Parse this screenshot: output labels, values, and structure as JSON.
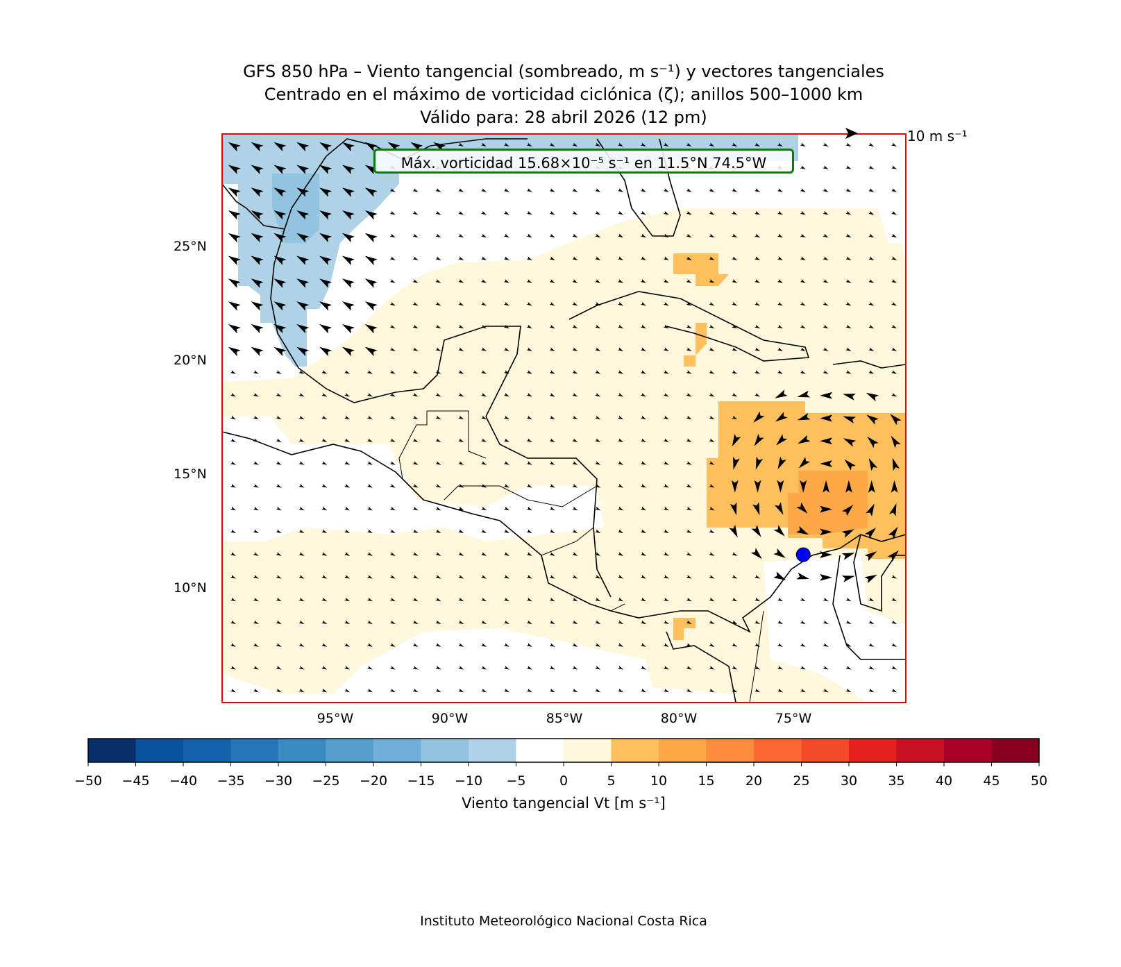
{
  "title": {
    "line1": "GFS 850 hPa – Viento tangencial (sombreado, m s⁻¹) y vectores tangenciales",
    "line2": "Centrado en el máximo de vorticidad ciclónica (ζ); anillos 500–1000 km",
    "line3": "Válido para: 28 abril 2026 (12 pm)"
  },
  "annotation": "Máx. vorticidad 15.68×10⁻⁵ s⁻¹ en 11.5°N 74.5°W",
  "quiver_key": "10 m s⁻¹",
  "map": {
    "extent": {
      "lon": [
        -100,
        -70
      ],
      "lat": [
        5,
        30
      ]
    },
    "lat_labels": [
      "25°N",
      "20°N",
      "15°N",
      "10°N"
    ],
    "lon_labels": [
      "95°W",
      "90°W",
      "85°W",
      "80°W",
      "75°W"
    ],
    "center_marker": {
      "lat": 11.5,
      "lon": -74.5,
      "color": "#0000ff"
    }
  },
  "colorbar": {
    "label": "Viento tangencial Vt [m s⁻¹]",
    "ticks": [
      "−50",
      "−45",
      "−40",
      "−35",
      "−30",
      "−25",
      "−20",
      "−15",
      "−10",
      "−5",
      "0",
      "5",
      "10",
      "15",
      "20",
      "25",
      "30",
      "35",
      "40",
      "45",
      "50"
    ],
    "colors": [
      "#08306b",
      "#08519c",
      "#1361a9",
      "#2575b7",
      "#3a8bc2",
      "#559fcd",
      "#6fafd8",
      "#93c4df",
      "#b0d2e6",
      "#ffffff",
      "#fff8dc",
      "#fec05c",
      "#fea848",
      "#fd8d3c",
      "#fc6833",
      "#f34a2a",
      "#e4221d",
      "#c81025",
      "#aa0026",
      "#88001f"
    ]
  },
  "credit": "Instituto Meteorológico Nacional Costa Rica"
}
